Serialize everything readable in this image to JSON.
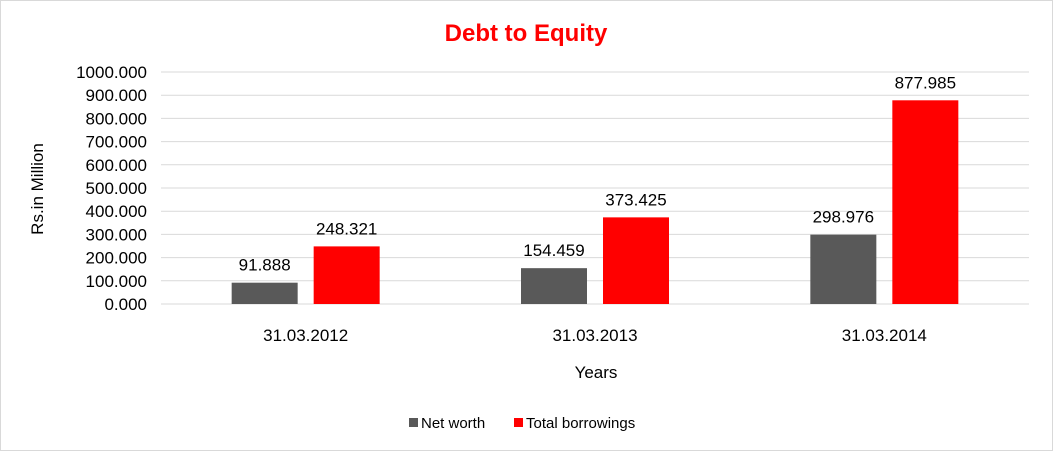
{
  "chart_data": {
    "type": "bar",
    "title": "Debt to Equity",
    "xlabel": "Years",
    "ylabel": "Rs.in Million",
    "categories": [
      "31.03.2012",
      "31.03.2013",
      "31.03.2014"
    ],
    "series": [
      {
        "name": "Net worth",
        "color": "#595959",
        "values": [
          91.888,
          154.459,
          298.976
        ],
        "labels": [
          "91.888",
          "154.459",
          "298.976"
        ]
      },
      {
        "name": "Total borrowings",
        "color": "#ff0000",
        "values": [
          248.321,
          373.425,
          877.985
        ],
        "labels": [
          "248.321",
          "373.425",
          "877.985"
        ]
      }
    ],
    "ylim": [
      0,
      1000
    ],
    "yticks": [
      0,
      100,
      200,
      300,
      400,
      500,
      600,
      700,
      800,
      900,
      1000
    ],
    "ytick_labels": [
      "0.000",
      "100.000",
      "200.000",
      "300.000",
      "400.000",
      "500.000",
      "600.000",
      "700.000",
      "800.000",
      "900.000",
      "1000.000"
    ],
    "grid": true,
    "legend_position": "bottom",
    "title_color": "#ff0000",
    "gridline_color": "#d9d9d9"
  }
}
